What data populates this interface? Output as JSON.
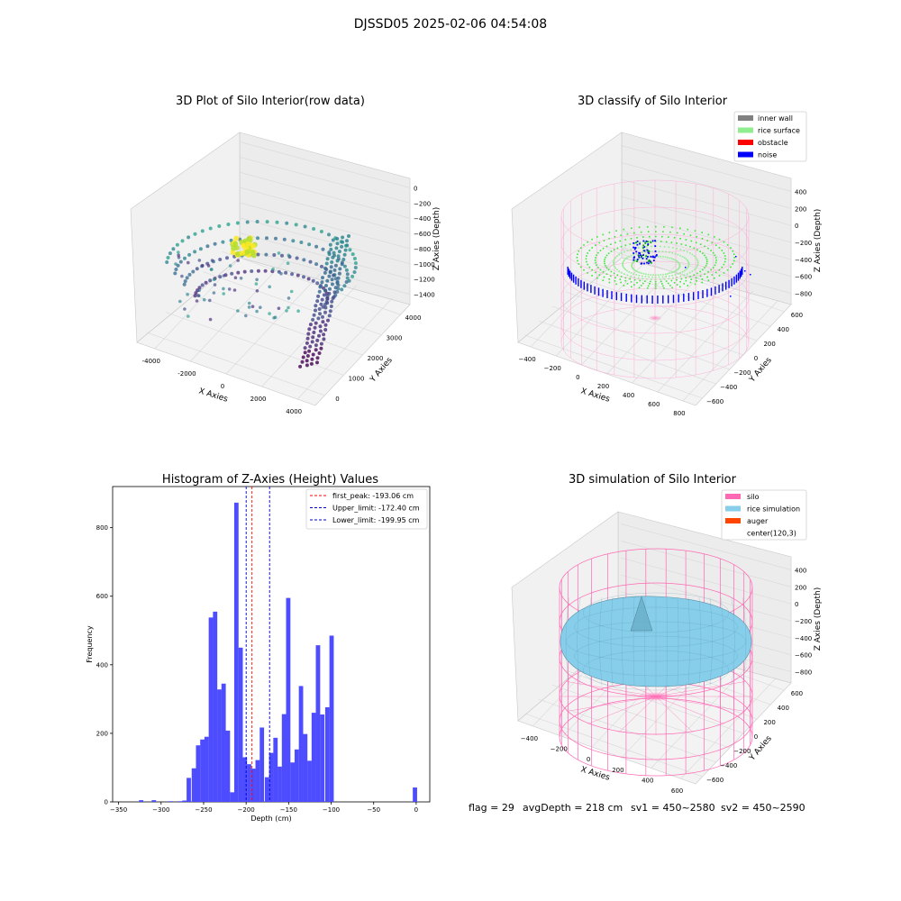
{
  "figure": {
    "suptitle": "DJSSD05 2025-02-06 04:54:08",
    "footer": {
      "flag": "flag = 29",
      "avg_depth": "avgDepth = 218 cm",
      "sv1": "sv1 = 450~2580",
      "sv2": "sv2 = 450~2590"
    }
  },
  "colors": {
    "histogram_bar": "#4d4dff",
    "first_peak_line": "#ff0000",
    "limit_line": "#0000cc",
    "inner_wall": "#808080",
    "rice_surface": "#90ee90",
    "obstacle": "#ff0000",
    "noise": "#0000ff",
    "silo": "#ff69b4",
    "rice_simulation": "#87ceeb",
    "auger": "#ff4500"
  },
  "chart_data": [
    {
      "type": "scatter",
      "title": "3D Plot of Silo Interior(row data)",
      "xlabel": "X Axies",
      "ylabel": "Y Axies",
      "zlabel": "Z Axies (Depth)",
      "x_ticks": [
        "-4000",
        "-2000",
        "0",
        "2000",
        "4000"
      ],
      "y_ticks": [
        "0",
        "1000",
        "2000",
        "3000",
        "4000"
      ],
      "z_ticks": [
        "0",
        "−200",
        "−400",
        "−600",
        "−800",
        "−1000",
        "−1200",
        "−1400"
      ]
    },
    {
      "type": "scatter",
      "title": "3D classify of Silo Interior",
      "xlabel": "X Axies",
      "ylabel": "Y Axies",
      "zlabel": "Z Axies (Depth)",
      "x_ticks": [
        "−400",
        "−200",
        "0",
        "200",
        "400",
        "600",
        "800"
      ],
      "y_ticks": [
        "−600",
        "−400",
        "−200",
        "0",
        "200",
        "400",
        "600"
      ],
      "z_ticks": [
        "400",
        "200",
        "0",
        "−200",
        "−400",
        "−600",
        "−800"
      ],
      "legend": [
        "inner wall",
        "rice surface",
        "obstacle",
        "noise"
      ],
      "legend_position": "top-right"
    },
    {
      "type": "bar",
      "title": "Histogram of Z-Axies (Height) Values",
      "xlabel": "Depth (cm)",
      "ylabel": "Frequency",
      "xlim": [
        -357,
        16
      ],
      "ylim": [
        0,
        920
      ],
      "x_ticks": [
        -350,
        -300,
        -250,
        -200,
        -150,
        -100,
        -50,
        0
      ],
      "x_tick_labels": [
        "−350",
        "−300",
        "−250",
        "−200",
        "−150",
        "−100",
        "−50",
        "0"
      ],
      "y_ticks": [
        0,
        200,
        400,
        600,
        800
      ],
      "bin_width": 5.1,
      "bins": [
        [
          -326,
          5
        ],
        [
          -311,
          5
        ],
        [
          -291,
          2
        ],
        [
          -280,
          2
        ],
        [
          -275,
          4
        ],
        [
          -270,
          70
        ],
        [
          -264,
          98
        ],
        [
          -259,
          165
        ],
        [
          -254,
          182
        ],
        [
          -249,
          190
        ],
        [
          -244,
          538
        ],
        [
          -239,
          555
        ],
        [
          -234,
          328
        ],
        [
          -229,
          345
        ],
        [
          -224,
          208
        ],
        [
          -219,
          28
        ],
        [
          -214,
          873
        ],
        [
          -209,
          450
        ],
        [
          -204,
          130
        ],
        [
          -199,
          110
        ],
        [
          -194,
          97
        ],
        [
          -189,
          122
        ],
        [
          -184,
          217
        ],
        [
          -178,
          72
        ],
        [
          -173,
          143
        ],
        [
          -168,
          187
        ],
        [
          -163,
          103
        ],
        [
          -158,
          256
        ],
        [
          -153,
          595
        ],
        [
          -148,
          115
        ],
        [
          -143,
          153
        ],
        [
          -138,
          338
        ],
        [
          -133,
          198
        ],
        [
          -128,
          120
        ],
        [
          -123,
          260
        ],
        [
          -118,
          457
        ],
        [
          -113,
          255
        ],
        [
          -107,
          276
        ],
        [
          -102,
          485
        ],
        [
          -4,
          42
        ]
      ],
      "lines": [
        {
          "name": "first_peak: -193.06 cm",
          "x": -193.06,
          "style": "red-dashed"
        },
        {
          "name": "Upper_limit: -172.40 cm",
          "x": -172.4,
          "style": "blue-dashed"
        },
        {
          "name": "Lower_limit: -199.95 cm",
          "x": -199.95,
          "style": "blue-dashed"
        }
      ],
      "legend_position": "top-right"
    },
    {
      "type": "area",
      "title": "3D simulation of Silo Interior",
      "xlabel": "X Axies",
      "ylabel": "Y Axies",
      "zlabel": "Z Axies (Depth)",
      "x_ticks": [
        "−400",
        "−200",
        "0",
        "200",
        "400",
        "600"
      ],
      "y_ticks": [
        "−600",
        "−400",
        "−200",
        "0",
        "200",
        "400",
        "600"
      ],
      "z_ticks": [
        "400",
        "200",
        "0",
        "−200",
        "−400",
        "−600",
        "−800"
      ],
      "legend": [
        "silo",
        "rice simulation",
        "auger",
        "center(120,3)"
      ],
      "legend_position": "top-right"
    }
  ]
}
